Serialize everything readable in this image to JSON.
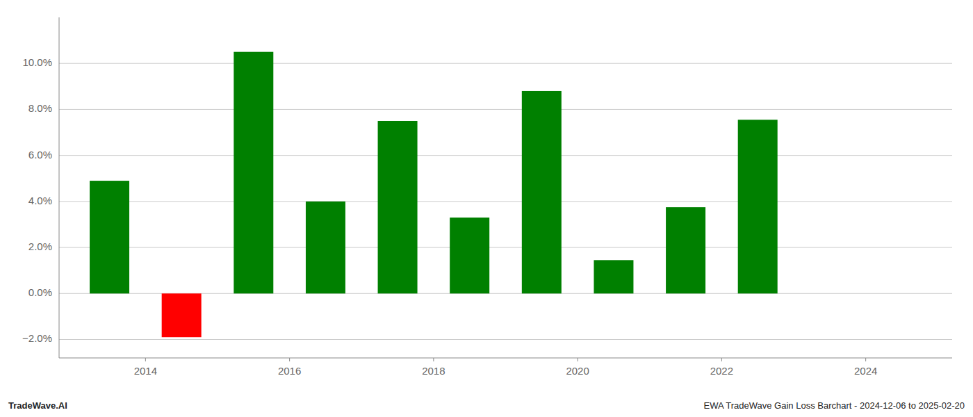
{
  "chart_data": {
    "type": "bar",
    "x": [
      2013.5,
      2014.5,
      2015.5,
      2016.5,
      2017.5,
      2018.5,
      2019.5,
      2020.5,
      2021.5,
      2022.5
    ],
    "values": [
      0.049,
      -0.019,
      0.105,
      0.04,
      0.075,
      0.033,
      0.088,
      0.0145,
      0.0375,
      0.0755
    ],
    "colors": [
      "#008000",
      "#ff0000",
      "#008000",
      "#008000",
      "#008000",
      "#008000",
      "#008000",
      "#008000",
      "#008000",
      "#008000"
    ],
    "xlim": [
      2012.8,
      2025.2
    ],
    "xticks": [
      2014,
      2016,
      2018,
      2020,
      2022,
      2024
    ],
    "ylim": [
      -0.028,
      0.12
    ],
    "yticks": [
      {
        "value": -0.02,
        "label": "−2.0%"
      },
      {
        "value": 0.0,
        "label": "0.0%"
      },
      {
        "value": 0.02,
        "label": "2.0%"
      },
      {
        "value": 0.04,
        "label": "4.0%"
      },
      {
        "value": 0.06,
        "label": "6.0%"
      },
      {
        "value": 0.08,
        "label": "8.0%"
      },
      {
        "value": 0.1,
        "label": "10.0%"
      }
    ],
    "grid": true,
    "annotations": [
      "TradeWave.AI",
      "EWA TradeWave Gain Loss Barchart - 2024-12-06 to 2025-02-20"
    ]
  }
}
